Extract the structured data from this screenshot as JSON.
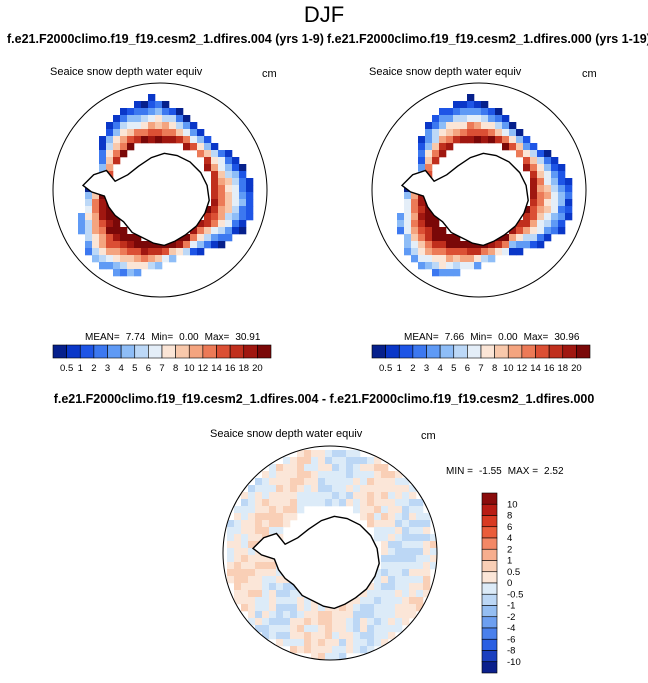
{
  "figure": {
    "title": "DJF",
    "run_left": "f.e21.F2000climo.f19_f19.cesm2_1.dfires.004 (yrs 1-9)",
    "run_right": "f.e21.F2000climo.f19_f19.cesm2_1.dfires.000 (yrs 1-19)",
    "diff_title": "f.e21.F2000climo.f19_f19.cesm2_1.dfires.004 - f.e21.F2000climo.f19_f19.cesm2_1.dfires.000"
  },
  "chart_data": [
    {
      "type": "heatmap",
      "projection": "south-polar-stereographic",
      "variable": "Seaice snow depth water equiv",
      "units": "cm",
      "stats": {
        "mean_label": "MEAN=",
        "mean": "7.74",
        "min_label": "Min=",
        "min": "0.00",
        "max_label": "Max=",
        "max": "30.91"
      },
      "colorbar": {
        "orientation": "horizontal",
        "levels": [
          "0.5",
          "1",
          "2",
          "3",
          "4",
          "5",
          "6",
          "7",
          "8",
          "10",
          "12",
          "14",
          "16",
          "18",
          "20"
        ],
        "colors": [
          "#06208c",
          "#0a37c8",
          "#1e55e6",
          "#3c78f0",
          "#5f9af5",
          "#8ebdf7",
          "#bcd8f7",
          "#e4eef8",
          "#fbe5d6",
          "#f8c8ab",
          "#f4a47f",
          "#ec7a57",
          "#db4f34",
          "#c02f1d",
          "#a01710",
          "#7a0808"
        ]
      }
    },
    {
      "type": "heatmap",
      "projection": "south-polar-stereographic",
      "variable": "Seaice snow depth water equiv",
      "units": "cm",
      "stats": {
        "mean_label": "MEAN=",
        "mean": "7.66",
        "min_label": "Min=",
        "min": "0.00",
        "max_label": "Max=",
        "max": "30.96"
      },
      "colorbar": {
        "orientation": "horizontal",
        "levels": [
          "0.5",
          "1",
          "2",
          "3",
          "4",
          "5",
          "6",
          "7",
          "8",
          "10",
          "12",
          "14",
          "16",
          "18",
          "20"
        ],
        "colors": [
          "#06208c",
          "#0a37c8",
          "#1e55e6",
          "#3c78f0",
          "#5f9af5",
          "#8ebdf7",
          "#bcd8f7",
          "#e4eef8",
          "#fbe5d6",
          "#f8c8ab",
          "#f4a47f",
          "#ec7a57",
          "#db4f34",
          "#c02f1d",
          "#a01710",
          "#7a0808"
        ]
      }
    },
    {
      "type": "heatmap",
      "projection": "south-polar-stereographic",
      "variable": "Seaice snow depth water equiv",
      "units": "cm",
      "stats": {
        "min_label": "MIN =",
        "min": "-1.55",
        "max_label": "MAX =",
        "max": "2.52"
      },
      "colorbar": {
        "orientation": "vertical",
        "levels": [
          "10",
          "8",
          "6",
          "4",
          "2",
          "1",
          "0.5",
          "0",
          "-0.5",
          "-1",
          "-2",
          "-4",
          "-6",
          "-8",
          "-10"
        ],
        "colors": [
          "#8a0c0c",
          "#b81c14",
          "#d83a22",
          "#ea5d3b",
          "#f38866",
          "#f7ae8e",
          "#f9cfb6",
          "#fbe6d8",
          "#dcebf8",
          "#bcd7f5",
          "#95bef2",
          "#6d9ff0",
          "#4a80ec",
          "#2a5fe2",
          "#1a3fbf",
          "#0b208c"
        ]
      }
    }
  ]
}
